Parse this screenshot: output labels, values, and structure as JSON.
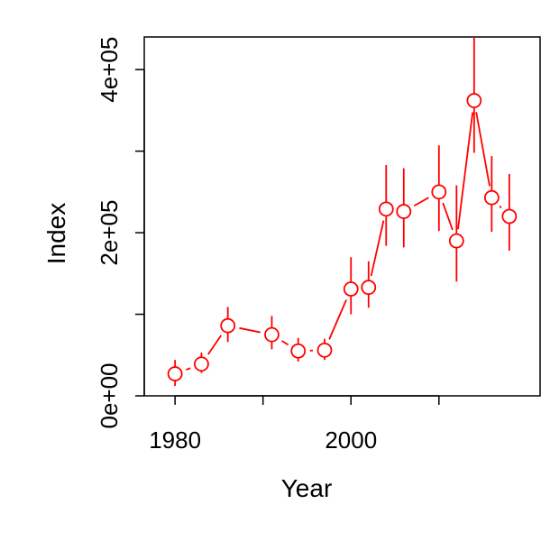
{
  "chart_data": {
    "type": "scatter",
    "xlabel": "Year",
    "ylabel": "Index",
    "xlim": [
      1976.5,
      2021.5
    ],
    "ylim": [
      0,
      440000
    ],
    "x_ticks": [
      1980,
      1990,
      2000,
      2010
    ],
    "x_tick_labels": [
      "1980",
      "",
      "2000",
      ""
    ],
    "y_ticks": [
      0,
      100000,
      200000,
      300000,
      400000
    ],
    "y_tick_labels": [
      "0e+00",
      "",
      "2e+05",
      "",
      "4e+05"
    ],
    "grid": false,
    "color": "#ff0000",
    "series": [
      {
        "x": [
          1980,
          1983,
          1986,
          1991,
          1994,
          1997,
          2000,
          2002,
          2004,
          2006,
          2010,
          2012,
          2014,
          2016,
          2018
        ],
        "y": [
          27000,
          39000,
          86000,
          75000,
          55000,
          56000,
          131000,
          133000,
          229000,
          226000,
          250000,
          190000,
          362000,
          243000,
          220000
        ],
        "lo": [
          12000,
          28000,
          66000,
          57000,
          42000,
          44000,
          100000,
          108000,
          184000,
          182000,
          202000,
          140000,
          298000,
          201000,
          178000
        ],
        "hi": [
          44000,
          53000,
          109000,
          98000,
          71000,
          70000,
          170000,
          165000,
          283000,
          279000,
          307000,
          258000,
          440000,
          294000,
          272000
        ]
      }
    ]
  }
}
